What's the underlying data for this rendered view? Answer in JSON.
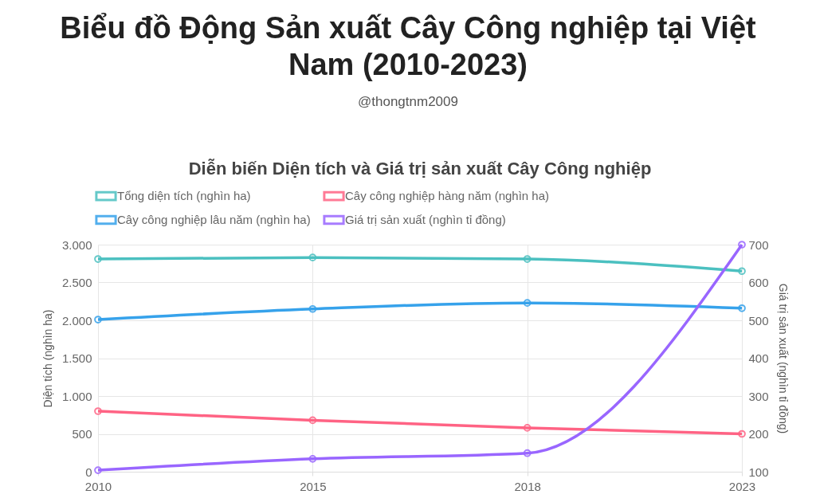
{
  "chart_data": {
    "type": "line",
    "title": "Biểu đồ Động Sản xuất Cây Công nghiệp tại Việt Nam (2010-2023)",
    "subtitle": "Diễn biến Diện tích và Giá trị sản xuất Cây Công nghiệp",
    "annotations": [
      "@thongtnm2009"
    ],
    "categories": [
      "2010",
      "2015",
      "2018",
      "2023"
    ],
    "series": [
      {
        "name": "Tổng diện tích (nghìn ha)",
        "color": "#4bc0c0",
        "values": [
          2810,
          2830,
          2810,
          2650
        ]
      },
      {
        "name": "Cây công nghiệp hàng năm (nghìn ha)",
        "color": "#ff6384",
        "values": [
          800,
          680,
          580,
          500
        ]
      },
      {
        "name": "Cây công nghiệp lâu năm (nghìn ha)",
        "color": "#36a2eb",
        "values": [
          2010,
          2150,
          2230,
          2160
        ]
      },
      {
        "name": "Giá trị sản xuất (nghìn tỉ đồng)",
        "color": "#9966ff",
        "axis": "y2",
        "values": [
          104,
          134,
          149,
          700
        ]
      }
    ],
    "ylabel": "Diện tích (nghìn ha)",
    "y2label": "Giá trị sản xuất (nghìn tỉ đồng)",
    "ylim": [
      0,
      3000
    ],
    "yticks": [
      {
        "value": 0,
        "label": "0"
      },
      {
        "value": 500,
        "label": "500"
      },
      {
        "value": 1000,
        "label": "1.000"
      },
      {
        "value": 1500,
        "label": "1.500"
      },
      {
        "value": 2000,
        "label": "2.000"
      },
      {
        "value": 2500,
        "label": "2.500"
      },
      {
        "value": 3000,
        "label": "3.000"
      }
    ],
    "y2lim": [
      100,
      700
    ],
    "y2ticks": [
      100,
      200,
      300,
      400,
      500,
      600,
      700
    ],
    "grid": true,
    "legend": "top",
    "marker": "circle",
    "line_style": "solid"
  }
}
